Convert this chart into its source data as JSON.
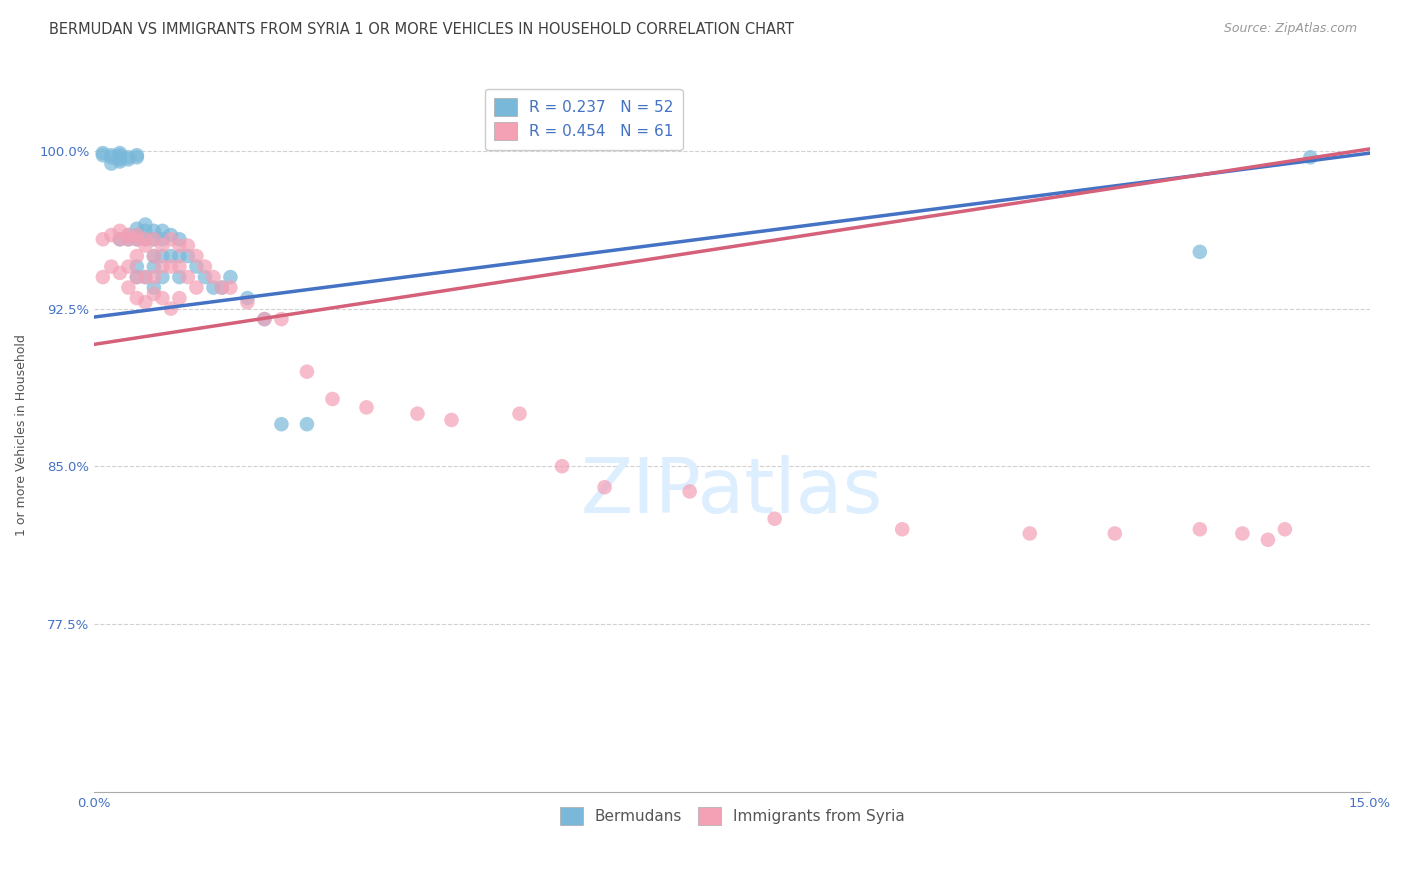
{
  "title": "BERMUDAN VS IMMIGRANTS FROM SYRIA 1 OR MORE VEHICLES IN HOUSEHOLD CORRELATION CHART",
  "source": "Source: ZipAtlas.com",
  "ylabel": "1 or more Vehicles in Household",
  "xlim": [
    0.0,
    0.15
  ],
  "ylim": [
    0.695,
    1.035
  ],
  "xtick_labels": [
    "0.0%",
    "15.0%"
  ],
  "xtick_positions": [
    0.0,
    0.15
  ],
  "ytick_labels": [
    "77.5%",
    "85.0%",
    "92.5%",
    "100.0%"
  ],
  "ytick_positions": [
    0.775,
    0.85,
    0.925,
    1.0
  ],
  "legend_r1": "R = 0.237",
  "legend_n1": "N = 52",
  "legend_r2": "R = 0.454",
  "legend_n2": "N = 61",
  "color_blue": "#7ab8d9",
  "color_pink": "#f4a0b5",
  "color_blue_line": "#4472c4",
  "color_pink_line": "#d4607a",
  "color_title": "#404040",
  "color_axis_text": "#4472c4",
  "color_watermark": "#ddeeff",
  "background_color": "#ffffff",
  "grid_color": "#cccccc",
  "blue_line_intercept": 0.921,
  "blue_line_slope": 0.52,
  "pink_line_intercept": 0.908,
  "pink_line_slope": 0.62,
  "scatter_blue_x": [
    0.001,
    0.001,
    0.002,
    0.002,
    0.002,
    0.003,
    0.003,
    0.003,
    0.003,
    0.003,
    0.003,
    0.004,
    0.004,
    0.004,
    0.004,
    0.005,
    0.005,
    0.005,
    0.005,
    0.005,
    0.005,
    0.005,
    0.006,
    0.006,
    0.006,
    0.006,
    0.007,
    0.007,
    0.007,
    0.007,
    0.007,
    0.008,
    0.008,
    0.008,
    0.008,
    0.009,
    0.009,
    0.01,
    0.01,
    0.01,
    0.011,
    0.012,
    0.013,
    0.014,
    0.015,
    0.016,
    0.018,
    0.02,
    0.022,
    0.025,
    0.13,
    0.143
  ],
  "scatter_blue_y": [
    0.999,
    0.998,
    0.997,
    0.998,
    0.994,
    0.999,
    0.998,
    0.997,
    0.996,
    0.995,
    0.958,
    0.997,
    0.996,
    0.96,
    0.958,
    0.998,
    0.997,
    0.963,
    0.96,
    0.958,
    0.945,
    0.94,
    0.965,
    0.962,
    0.958,
    0.94,
    0.962,
    0.958,
    0.95,
    0.945,
    0.935,
    0.962,
    0.958,
    0.95,
    0.94,
    0.96,
    0.95,
    0.958,
    0.95,
    0.94,
    0.95,
    0.945,
    0.94,
    0.935,
    0.935,
    0.94,
    0.93,
    0.92,
    0.87,
    0.87,
    0.952,
    0.997
  ],
  "scatter_pink_x": [
    0.001,
    0.001,
    0.002,
    0.002,
    0.003,
    0.003,
    0.003,
    0.004,
    0.004,
    0.004,
    0.004,
    0.005,
    0.005,
    0.005,
    0.005,
    0.005,
    0.006,
    0.006,
    0.006,
    0.006,
    0.007,
    0.007,
    0.007,
    0.007,
    0.008,
    0.008,
    0.008,
    0.009,
    0.009,
    0.009,
    0.01,
    0.01,
    0.01,
    0.011,
    0.011,
    0.012,
    0.012,
    0.013,
    0.014,
    0.015,
    0.016,
    0.018,
    0.02,
    0.022,
    0.025,
    0.028,
    0.032,
    0.038,
    0.042,
    0.05,
    0.055,
    0.06,
    0.07,
    0.08,
    0.095,
    0.11,
    0.12,
    0.13,
    0.135,
    0.138,
    0.14
  ],
  "scatter_pink_y": [
    0.958,
    0.94,
    0.96,
    0.945,
    0.962,
    0.958,
    0.942,
    0.96,
    0.958,
    0.945,
    0.935,
    0.96,
    0.958,
    0.95,
    0.94,
    0.93,
    0.958,
    0.955,
    0.94,
    0.928,
    0.958,
    0.95,
    0.94,
    0.932,
    0.955,
    0.945,
    0.93,
    0.958,
    0.945,
    0.925,
    0.955,
    0.945,
    0.93,
    0.955,
    0.94,
    0.95,
    0.935,
    0.945,
    0.94,
    0.935,
    0.935,
    0.928,
    0.92,
    0.92,
    0.895,
    0.882,
    0.878,
    0.875,
    0.872,
    0.875,
    0.85,
    0.84,
    0.838,
    0.825,
    0.82,
    0.818,
    0.818,
    0.82,
    0.818,
    0.815,
    0.82
  ],
  "title_fontsize": 10.5,
  "source_fontsize": 9,
  "axis_label_fontsize": 9,
  "tick_fontsize": 9.5,
  "legend_fontsize": 11,
  "watermark_fontsize": 55
}
